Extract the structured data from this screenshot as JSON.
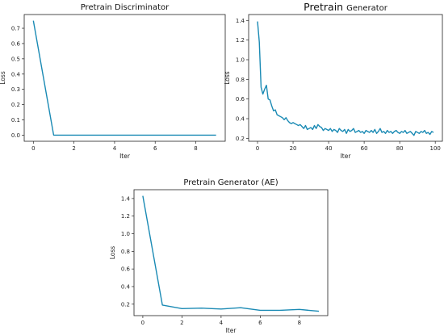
{
  "chart_data": [
    {
      "type": "line",
      "title": "Pretrain Discriminator",
      "xlabel": "Iter",
      "ylabel": "Loss",
      "xlim": [
        -0.45,
        9.45
      ],
      "ylim": [
        -0.04,
        0.79
      ],
      "xticks": [
        0,
        2,
        4,
        6,
        8
      ],
      "yticks": [
        0.0,
        0.1,
        0.2,
        0.3,
        0.4,
        0.5,
        0.6,
        0.7
      ],
      "ytick_decimals": 1,
      "grid": false,
      "color": "#1a8ab4",
      "x": [
        0,
        1,
        2,
        3,
        4,
        5,
        6,
        7,
        8,
        9
      ],
      "y": [
        0.75,
        0.0,
        0.0,
        0.0,
        0.0,
        0.0,
        0.0,
        0.0,
        0.0,
        0.0
      ]
    },
    {
      "type": "line",
      "title_main": "Pretrain",
      "title_sub": "Generator",
      "xlabel": "Iter",
      "ylabel": "Loss",
      "xlim": [
        -5,
        104
      ],
      "ylim": [
        0.17,
        1.46
      ],
      "xticks": [
        0,
        20,
        40,
        60,
        80,
        100
      ],
      "yticks": [
        0.2,
        0.4,
        0.6,
        0.8,
        1.0,
        1.2,
        1.4
      ],
      "ytick_decimals": 1,
      "grid": false,
      "color": "#1a8ab4",
      "x": [
        0,
        1,
        2,
        3,
        4,
        5,
        6,
        7,
        8,
        9,
        10,
        11,
        12,
        13,
        14,
        15,
        16,
        17,
        18,
        19,
        20,
        21,
        22,
        23,
        24,
        25,
        26,
        27,
        28,
        29,
        30,
        31,
        32,
        33,
        34,
        35,
        36,
        37,
        38,
        39,
        40,
        41,
        42,
        43,
        44,
        45,
        46,
        47,
        48,
        49,
        50,
        51,
        52,
        53,
        54,
        55,
        56,
        57,
        58,
        59,
        60,
        61,
        62,
        63,
        64,
        65,
        66,
        67,
        68,
        69,
        70,
        71,
        72,
        73,
        74,
        75,
        76,
        77,
        78,
        79,
        80,
        81,
        82,
        83,
        84,
        85,
        86,
        87,
        88,
        89,
        90,
        91,
        92,
        93,
        94,
        95,
        96,
        97,
        98,
        99
      ],
      "y": [
        1.39,
        1.18,
        0.72,
        0.65,
        0.7,
        0.74,
        0.6,
        0.59,
        0.53,
        0.48,
        0.49,
        0.44,
        0.43,
        0.42,
        0.41,
        0.39,
        0.41,
        0.38,
        0.36,
        0.35,
        0.36,
        0.35,
        0.34,
        0.33,
        0.34,
        0.32,
        0.3,
        0.33,
        0.29,
        0.3,
        0.31,
        0.29,
        0.33,
        0.3,
        0.34,
        0.32,
        0.31,
        0.28,
        0.3,
        0.29,
        0.28,
        0.3,
        0.27,
        0.29,
        0.28,
        0.26,
        0.3,
        0.28,
        0.27,
        0.29,
        0.25,
        0.29,
        0.27,
        0.28,
        0.3,
        0.26,
        0.27,
        0.28,
        0.26,
        0.27,
        0.25,
        0.28,
        0.27,
        0.26,
        0.28,
        0.26,
        0.29,
        0.25,
        0.27,
        0.3,
        0.26,
        0.27,
        0.25,
        0.28,
        0.26,
        0.27,
        0.25,
        0.27,
        0.28,
        0.26,
        0.25,
        0.27,
        0.26,
        0.28,
        0.25,
        0.26,
        0.27,
        0.25,
        0.23,
        0.27,
        0.26,
        0.25,
        0.27,
        0.26,
        0.28,
        0.25,
        0.26,
        0.24,
        0.27,
        0.26
      ]
    },
    {
      "type": "line",
      "title": "Pretrain Generator (AE)",
      "xlabel": "Iter",
      "ylabel": "Loss",
      "xlim": [
        -0.45,
        9.45
      ],
      "ylim": [
        0.07,
        1.5
      ],
      "xticks": [
        0,
        2,
        4,
        6,
        8
      ],
      "yticks": [
        0.2,
        0.4,
        0.6,
        0.8,
        1.0,
        1.2,
        1.4
      ],
      "ytick_decimals": 1,
      "grid": false,
      "color": "#1a8ab4",
      "x": [
        0,
        1,
        2,
        3,
        4,
        5,
        6,
        7,
        8,
        9
      ],
      "y": [
        1.43,
        0.19,
        0.15,
        0.155,
        0.145,
        0.16,
        0.13,
        0.13,
        0.14,
        0.12
      ]
    }
  ]
}
